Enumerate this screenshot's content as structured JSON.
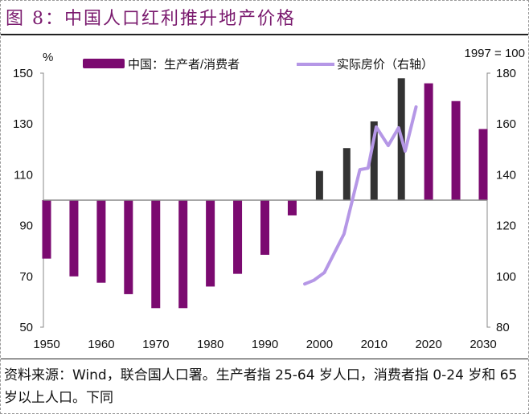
{
  "title": "图 8：中国人口红利推升地产价格",
  "note": "资料来源：Wind，联合国人口署。生产者指 25-64 岁人口，消费者指 0-24 岁和 65 岁以上人口。下同",
  "colors": {
    "bar": "#7b0a70",
    "bar_recent": "#333333",
    "line": "#b597e6",
    "title": "#7a1a6e"
  },
  "chart_data": {
    "type": "bar+line",
    "left_unit": "%",
    "right_unit": "1997 = 100",
    "left_ylim": [
      50,
      150
    ],
    "left_ticks": [
      50,
      70,
      90,
      110,
      130,
      150
    ],
    "right_ylim": [
      80,
      180
    ],
    "right_ticks": [
      80,
      100,
      120,
      140,
      160,
      180
    ],
    "x_ticks": [
      1950,
      1960,
      1970,
      1980,
      1990,
      2000,
      2010,
      2020,
      2030
    ],
    "bar_baseline": 100,
    "legend": [
      {
        "name": "中国：生产者/消费者",
        "type": "bar"
      },
      {
        "name": "实际房价（右轴）",
        "type": "line"
      }
    ],
    "bars": {
      "name": "中国：生产者/消费者",
      "years": [
        1950,
        1955,
        1960,
        1965,
        1970,
        1975,
        1980,
        1985,
        1990,
        1995,
        2000,
        2005,
        2010,
        2015,
        2020,
        2025,
        2030
      ],
      "values": [
        77,
        70,
        67.5,
        63,
        57.5,
        57.5,
        66,
        71,
        78.5,
        94,
        111.5,
        120.5,
        131,
        148,
        146,
        139,
        128
      ],
      "colors": [
        "bar",
        "bar",
        "bar",
        "bar",
        "bar",
        "bar",
        "bar",
        "bar",
        "bar",
        "bar",
        "bar_recent",
        "bar_recent",
        "bar_recent",
        "bar_recent",
        "bar",
        "bar",
        "bar"
      ]
    },
    "line": {
      "name": "实际房价（右轴）",
      "x": [
        1997.3,
        1999,
        2000.9,
        2004.5,
        2007.4,
        2008.9,
        2010.4,
        2012.6,
        2014.5,
        2015.7,
        2017.7
      ],
      "y": [
        97,
        98.5,
        101.5,
        116.7,
        142,
        142.6,
        158.8,
        151.5,
        158.5,
        149.3,
        166.7
      ]
    }
  }
}
